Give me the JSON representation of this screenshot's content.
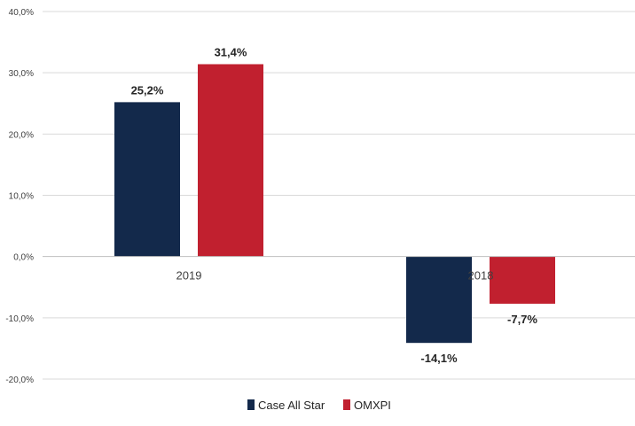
{
  "chart_data": {
    "type": "bar",
    "categories": [
      "2019",
      "2018"
    ],
    "series": [
      {
        "name": "Case All Star",
        "values": [
          25.2,
          -14.1
        ],
        "labels": [
          "25,2%",
          "-14,1%"
        ]
      },
      {
        "name": "OMXPI",
        "values": [
          31.4,
          -7.7
        ],
        "labels": [
          "31,4%",
          "-7,7%"
        ]
      }
    ],
    "ylim": [
      -20,
      40
    ],
    "yticks": [
      40,
      30,
      20,
      10,
      0,
      -10,
      -20
    ],
    "ytick_labels": [
      "40,0%",
      "30,0%",
      "20,0%",
      "10,0%",
      "0,0%",
      "-10,0%",
      "-20,0%"
    ],
    "grid": true,
    "legend": "bottom",
    "colors": [
      "#13294b",
      "#c1202f"
    ]
  }
}
